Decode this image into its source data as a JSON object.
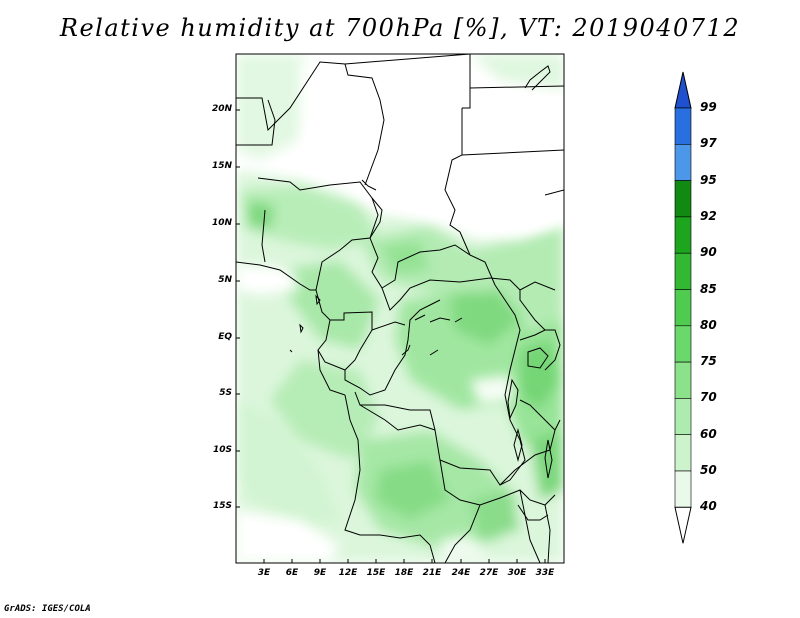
{
  "title": "Relative humidity at 700hPa [%], VT: 2019040712",
  "credit": "GrADS: IGES/COLA",
  "map": {
    "lat_labels": [
      "20N",
      "15N",
      "10N",
      "5N",
      "EQ",
      "5S",
      "10S",
      "15S"
    ],
    "lon_labels": [
      "3E",
      "6E",
      "9E",
      "12E",
      "15E",
      "18E",
      "21E",
      "24E",
      "27E",
      "30E",
      "33E"
    ]
  },
  "colorbar": {
    "labels": [
      "99",
      "97",
      "95",
      "92",
      "90",
      "85",
      "80",
      "75",
      "70",
      "60",
      "50",
      "40"
    ],
    "colors": [
      "#1e50d0",
      "#2a6fe0",
      "#4c97ea",
      "#118a12",
      "#1da51e",
      "#33b833",
      "#4fcc4f",
      "#6ad86a",
      "#8be28b",
      "#aeebae",
      "#cdf3cd",
      "#eafaea"
    ]
  }
}
